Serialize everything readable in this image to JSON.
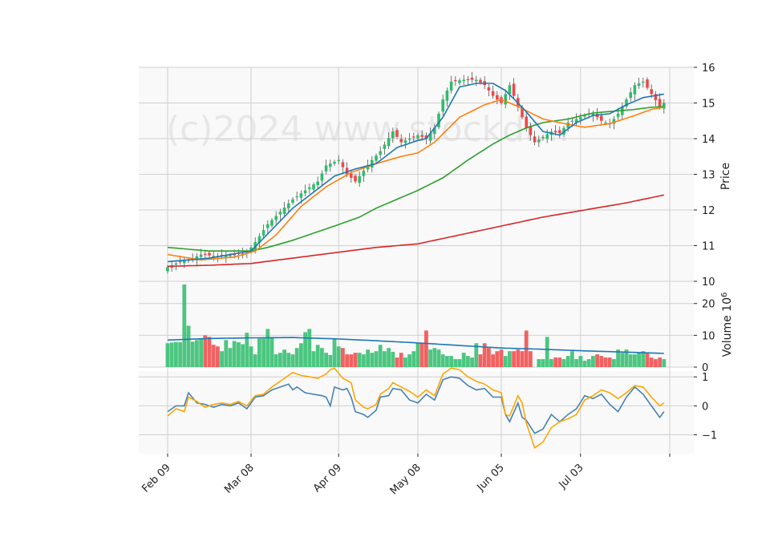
{
  "chart_data": {
    "type": "candlestick",
    "watermark": "(c)2024 www.stockdr...",
    "x_tick_labels": [
      "Feb 09",
      "Mar 08",
      "Apr 09",
      "May 08",
      "Jun 05",
      "Jul 03"
    ],
    "x_tick_indices": [
      0,
      20,
      41,
      60,
      80,
      99
    ],
    "n_bars": 120,
    "colors": {
      "up": "#2ebd6b",
      "down": "#f04848",
      "ma_short": "#1f77b4",
      "ma_mid": "#ff7f0e",
      "ma_long": "#2ca02c",
      "ma_200": "#d62728",
      "volume_ma": "#1f77b4",
      "osc_fast": "#4682b4",
      "osc_slow": "#ffa500",
      "panel_bg": "#f9f9f9",
      "grid": "#d0d0d0"
    },
    "price_panel": {
      "ylabel": "Price",
      "ylim": [
        10,
        16
      ],
      "yticks": [
        10,
        11,
        12,
        13,
        14,
        15,
        16
      ],
      "close_anchors": [
        [
          0,
          10.4
        ],
        [
          3,
          10.55
        ],
        [
          5,
          10.6
        ],
        [
          8,
          10.75
        ],
        [
          12,
          10.7
        ],
        [
          16,
          10.75
        ],
        [
          19,
          10.8
        ],
        [
          21,
          11.1
        ],
        [
          24,
          11.6
        ],
        [
          27,
          11.95
        ],
        [
          30,
          12.3
        ],
        [
          33,
          12.55
        ],
        [
          36,
          12.8
        ],
        [
          38,
          13.25
        ],
        [
          41,
          13.4
        ],
        [
          43,
          13.0
        ],
        [
          45,
          12.8
        ],
        [
          47,
          13.1
        ],
        [
          49,
          13.4
        ],
        [
          51,
          13.65
        ],
        [
          54,
          14.2
        ],
        [
          56,
          13.9
        ],
        [
          58,
          14.0
        ],
        [
          60,
          14.1
        ],
        [
          62,
          14.0
        ],
        [
          64,
          14.3
        ],
        [
          66,
          15.1
        ],
        [
          68,
          15.6
        ],
        [
          71,
          15.65
        ],
        [
          74,
          15.65
        ],
        [
          76,
          15.5
        ],
        [
          78,
          15.2
        ],
        [
          80,
          15.0
        ],
        [
          82,
          15.5
        ],
        [
          84,
          14.9
        ],
        [
          86,
          14.3
        ],
        [
          88,
          13.9
        ],
        [
          90,
          14.05
        ],
        [
          92,
          14.2
        ],
        [
          94,
          14.15
        ],
        [
          96,
          14.45
        ],
        [
          98,
          14.55
        ],
        [
          100,
          14.65
        ],
        [
          102,
          14.7
        ],
        [
          104,
          14.5
        ],
        [
          106,
          14.4
        ],
        [
          108,
          14.7
        ],
        [
          110,
          15.1
        ],
        [
          112,
          15.5
        ],
        [
          114,
          15.6
        ],
        [
          116,
          15.25
        ],
        [
          118,
          14.9
        ],
        [
          119,
          15.0
        ]
      ],
      "ma_short_anchors": [
        [
          0,
          10.55
        ],
        [
          10,
          10.65
        ],
        [
          20,
          10.85
        ],
        [
          30,
          12.05
        ],
        [
          40,
          12.95
        ],
        [
          45,
          13.15
        ],
        [
          50,
          13.3
        ],
        [
          55,
          13.75
        ],
        [
          60,
          13.95
        ],
        [
          62,
          14.0
        ],
        [
          66,
          14.6
        ],
        [
          70,
          15.45
        ],
        [
          74,
          15.55
        ],
        [
          78,
          15.55
        ],
        [
          81,
          15.35
        ],
        [
          84,
          15.0
        ],
        [
          86,
          14.75
        ],
        [
          90,
          14.2
        ],
        [
          94,
          14.1
        ],
        [
          98,
          14.45
        ],
        [
          102,
          14.65
        ],
        [
          106,
          14.7
        ],
        [
          110,
          14.95
        ],
        [
          114,
          15.15
        ],
        [
          119,
          15.25
        ]
      ],
      "ma_mid_anchors": [
        [
          0,
          10.75
        ],
        [
          8,
          10.6
        ],
        [
          16,
          10.68
        ],
        [
          21,
          10.85
        ],
        [
          26,
          11.3
        ],
        [
          32,
          12.1
        ],
        [
          38,
          12.65
        ],
        [
          44,
          13.05
        ],
        [
          50,
          13.3
        ],
        [
          56,
          13.5
        ],
        [
          60,
          13.6
        ],
        [
          64,
          13.9
        ],
        [
          70,
          14.6
        ],
        [
          76,
          14.95
        ],
        [
          80,
          15.1
        ],
        [
          84,
          14.9
        ],
        [
          90,
          14.55
        ],
        [
          96,
          14.4
        ],
        [
          100,
          14.32
        ],
        [
          106,
          14.42
        ],
        [
          112,
          14.65
        ],
        [
          116,
          14.82
        ],
        [
          119,
          14.88
        ]
      ],
      "ma_long_anchors": [
        [
          0,
          10.95
        ],
        [
          10,
          10.85
        ],
        [
          20,
          10.85
        ],
        [
          24,
          10.95
        ],
        [
          30,
          11.15
        ],
        [
          40,
          11.55
        ],
        [
          46,
          11.8
        ],
        [
          50,
          12.05
        ],
        [
          56,
          12.35
        ],
        [
          60,
          12.55
        ],
        [
          66,
          12.9
        ],
        [
          72,
          13.4
        ],
        [
          78,
          13.85
        ],
        [
          82,
          14.1
        ],
        [
          86,
          14.3
        ],
        [
          90,
          14.45
        ],
        [
          96,
          14.55
        ],
        [
          102,
          14.72
        ],
        [
          108,
          14.78
        ],
        [
          112,
          14.82
        ],
        [
          116,
          14.88
        ],
        [
          119,
          14.9
        ]
      ],
      "ma_200_anchors": [
        [
          0,
          10.42
        ],
        [
          10,
          10.45
        ],
        [
          20,
          10.5
        ],
        [
          30,
          10.65
        ],
        [
          40,
          10.8
        ],
        [
          50,
          10.95
        ],
        [
          60,
          11.05
        ],
        [
          70,
          11.3
        ],
        [
          80,
          11.55
        ],
        [
          90,
          11.8
        ],
        [
          100,
          12.0
        ],
        [
          110,
          12.2
        ],
        [
          119,
          12.42
        ]
      ]
    },
    "volume_panel": {
      "ylabel": "Volume  10",
      "ylabel_exponent": "6",
      "ylim": [
        0,
        27
      ],
      "yticks": [
        0,
        10,
        20
      ],
      "values": [
        7.5,
        7.7,
        7.9,
        7.8,
        26,
        13,
        8,
        8.5,
        8.8,
        10,
        9.5,
        7,
        6.5,
        5,
        8.5,
        6,
        8.2,
        7.8,
        7.2,
        10.8,
        6.5,
        4,
        9,
        9,
        12,
        9.3,
        4,
        4.5,
        5.5,
        4.5,
        4,
        6,
        7.5,
        11,
        12,
        5,
        7,
        6,
        4.5,
        3.8,
        9,
        6.5,
        6,
        4,
        4,
        4.5,
        4.5,
        4,
        5.5,
        4.5,
        5,
        7,
        5,
        6,
        4.8,
        3,
        4.5,
        3,
        4,
        5,
        7.5,
        7.5,
        11.5,
        5.5,
        6,
        5.5,
        4,
        3.5,
        3.5,
        2.5,
        2.5,
        4.5,
        3.5,
        3,
        7.5,
        4,
        7.5,
        6,
        4,
        5,
        5.5,
        3.5,
        5,
        5,
        5.5,
        5,
        11.5,
        5,
        0,
        2.5,
        2.5,
        9.5,
        2.5,
        3,
        3,
        2.5,
        3.5,
        5,
        2.5,
        3.5,
        2,
        2.5,
        3.5,
        4,
        3.5,
        3,
        3,
        2.5,
        5.5,
        4.5,
        5.5,
        4,
        4,
        4.5,
        5,
        4.5,
        3,
        2.5,
        3,
        2.5
      ],
      "ma_anchors": [
        [
          0,
          8.5
        ],
        [
          10,
          9
        ],
        [
          20,
          9.2
        ],
        [
          30,
          9.3
        ],
        [
          40,
          8.9
        ],
        [
          50,
          8.3
        ],
        [
          60,
          7.6
        ],
        [
          70,
          6.8
        ],
        [
          80,
          6
        ],
        [
          90,
          5.6
        ],
        [
          100,
          5.1
        ],
        [
          110,
          4.7
        ],
        [
          119,
          4.3
        ]
      ]
    },
    "oscillator_panel": {
      "ylim": [
        -1.65,
        1.2
      ],
      "yticks": [
        -1,
        0,
        1
      ],
      "ytick_labels": [
        "−1",
        "0",
        "1"
      ],
      "fast_anchors": [
        [
          0,
          -0.2
        ],
        [
          2,
          0.0
        ],
        [
          4,
          0.0
        ],
        [
          5,
          0.45
        ],
        [
          7,
          0.1
        ],
        [
          9,
          0.05
        ],
        [
          11,
          -0.05
        ],
        [
          13,
          0.05
        ],
        [
          15,
          0.0
        ],
        [
          17,
          0.1
        ],
        [
          19,
          -0.1
        ],
        [
          21,
          0.3
        ],
        [
          23,
          0.35
        ],
        [
          25,
          0.55
        ],
        [
          27,
          0.65
        ],
        [
          29,
          0.75
        ],
        [
          30,
          0.55
        ],
        [
          31,
          0.65
        ],
        [
          33,
          0.45
        ],
        [
          35,
          0.4
        ],
        [
          37,
          0.35
        ],
        [
          38,
          0.3
        ],
        [
          39,
          0.0
        ],
        [
          40,
          0.65
        ],
        [
          42,
          0.55
        ],
        [
          43,
          0.6
        ],
        [
          44,
          0.3
        ],
        [
          45,
          -0.2
        ],
        [
          47,
          -0.3
        ],
        [
          48,
          -0.4
        ],
        [
          50,
          -0.15
        ],
        [
          51,
          0.3
        ],
        [
          53,
          0.35
        ],
        [
          54,
          0.6
        ],
        [
          56,
          0.55
        ],
        [
          58,
          0.2
        ],
        [
          60,
          0.1
        ],
        [
          62,
          0.4
        ],
        [
          64,
          0.2
        ],
        [
          66,
          0.9
        ],
        [
          68,
          1.0
        ],
        [
          70,
          0.95
        ],
        [
          72,
          0.7
        ],
        [
          74,
          0.55
        ],
        [
          76,
          0.6
        ],
        [
          78,
          0.3
        ],
        [
          80,
          0.3
        ],
        [
          81,
          -0.3
        ],
        [
          82,
          -0.55
        ],
        [
          84,
          0.1
        ],
        [
          85,
          -0.4
        ],
        [
          86,
          -0.5
        ],
        [
          88,
          -0.95
        ],
        [
          90,
          -0.8
        ],
        [
          92,
          -0.3
        ],
        [
          94,
          -0.55
        ],
        [
          96,
          -0.3
        ],
        [
          98,
          -0.1
        ],
        [
          100,
          0.35
        ],
        [
          102,
          0.25
        ],
        [
          104,
          0.4
        ],
        [
          106,
          0.05
        ],
        [
          108,
          -0.2
        ],
        [
          110,
          0.3
        ],
        [
          112,
          0.65
        ],
        [
          114,
          0.4
        ],
        [
          116,
          0.0
        ],
        [
          118,
          -0.4
        ],
        [
          119,
          -0.2
        ]
      ],
      "slow_anchors": [
        [
          0,
          -0.35
        ],
        [
          2,
          -0.1
        ],
        [
          4,
          -0.2
        ],
        [
          5,
          0.3
        ],
        [
          7,
          0.15
        ],
        [
          9,
          -0.05
        ],
        [
          11,
          0.05
        ],
        [
          13,
          0.1
        ],
        [
          15,
          0.05
        ],
        [
          17,
          0.15
        ],
        [
          19,
          0.0
        ],
        [
          21,
          0.35
        ],
        [
          23,
          0.4
        ],
        [
          25,
          0.65
        ],
        [
          27,
          0.85
        ],
        [
          29,
          1.05
        ],
        [
          30,
          1.15
        ],
        [
          32,
          1.05
        ],
        [
          34,
          1.0
        ],
        [
          36,
          0.95
        ],
        [
          38,
          1.1
        ],
        [
          39,
          1.25
        ],
        [
          40,
          1.3
        ],
        [
          42,
          0.95
        ],
        [
          44,
          0.8
        ],
        [
          45,
          0.2
        ],
        [
          47,
          -0.05
        ],
        [
          48,
          -0.1
        ],
        [
          50,
          0.05
        ],
        [
          51,
          0.4
        ],
        [
          53,
          0.6
        ],
        [
          54,
          0.8
        ],
        [
          56,
          0.65
        ],
        [
          58,
          0.5
        ],
        [
          60,
          0.3
        ],
        [
          62,
          0.55
        ],
        [
          64,
          0.35
        ],
        [
          66,
          1.1
        ],
        [
          68,
          1.3
        ],
        [
          70,
          1.25
        ],
        [
          72,
          1.0
        ],
        [
          74,
          0.85
        ],
        [
          76,
          0.75
        ],
        [
          78,
          0.55
        ],
        [
          80,
          0.45
        ],
        [
          81,
          -0.3
        ],
        [
          82,
          -0.35
        ],
        [
          84,
          0.35
        ],
        [
          85,
          0.1
        ],
        [
          86,
          -0.6
        ],
        [
          88,
          -1.45
        ],
        [
          90,
          -1.25
        ],
        [
          92,
          -0.75
        ],
        [
          94,
          -0.55
        ],
        [
          96,
          -0.45
        ],
        [
          98,
          -0.3
        ],
        [
          100,
          0.2
        ],
        [
          102,
          0.35
        ],
        [
          104,
          0.55
        ],
        [
          106,
          0.45
        ],
        [
          108,
          0.25
        ],
        [
          110,
          0.45
        ],
        [
          112,
          0.7
        ],
        [
          114,
          0.65
        ],
        [
          116,
          0.3
        ],
        [
          118,
          0.0
        ],
        [
          119,
          0.1
        ]
      ]
    }
  }
}
